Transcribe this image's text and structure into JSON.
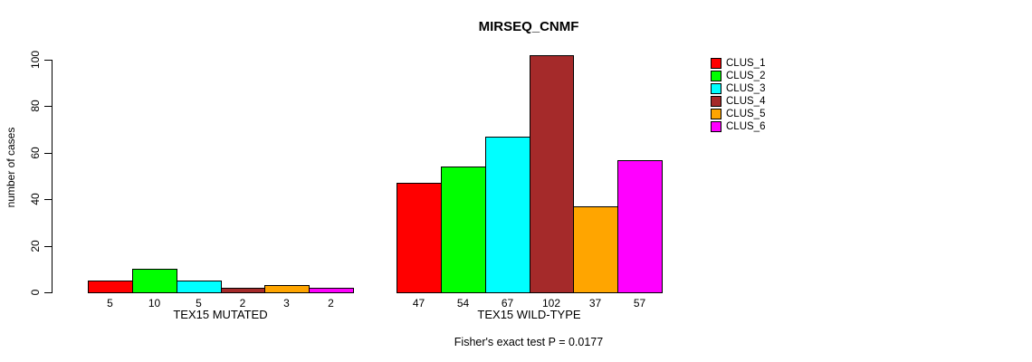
{
  "chart_data": {
    "type": "bar",
    "title": "MIRSEQ_CNMF",
    "ylabel": "number of cases",
    "xlabel": "",
    "ylim": [
      0,
      100
    ],
    "yticks": [
      0,
      20,
      40,
      60,
      80,
      100
    ],
    "grid": false,
    "legend_position": "right",
    "categories": [
      "CLUS_1",
      "CLUS_2",
      "CLUS_3",
      "CLUS_4",
      "CLUS_5",
      "CLUS_6"
    ],
    "cluster_colors": [
      "#ff0000",
      "#00ff00",
      "#00ffff",
      "#a52a2a",
      "#ffa500",
      "#ff00ff"
    ],
    "groups": [
      {
        "label": "TEX15 MUTATED",
        "values": [
          5,
          10,
          5,
          2,
          3,
          2
        ]
      },
      {
        "label": "TEX15 WILD-TYPE",
        "values": [
          47,
          54,
          67,
          102,
          37,
          57
        ]
      }
    ],
    "annotation": "Fisher's exact test P = 0.0177"
  }
}
